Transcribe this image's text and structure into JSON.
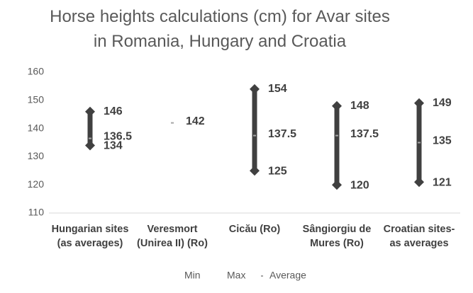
{
  "chart_data": {
    "type": "high-low",
    "title": "Horse heights calculations (cm) for Avar sites in Romania, Hungary and Croatia",
    "categories": [
      "Hungarian sites (as averages)",
      "Veresmort (Unirea II) (Ro)",
      "Cicău (Ro)",
      "Sângiorgiu de Mures (Ro)",
      "Croatian sites- as averages"
    ],
    "series": [
      {
        "name": "Min",
        "color": "#404040",
        "values": [
          134,
          null,
          125,
          120,
          121
        ]
      },
      {
        "name": "Max",
        "color": "#404040",
        "values": [
          146,
          null,
          154,
          148,
          149
        ]
      },
      {
        "name": "Average",
        "color": "#a5a5a5",
        "values": [
          136.5,
          142,
          137.5,
          137.5,
          135
        ]
      }
    ],
    "ylim": [
      110,
      160
    ],
    "yticks": [
      110,
      120,
      130,
      140,
      150,
      160
    ],
    "grid": false,
    "legend": "bottom"
  }
}
